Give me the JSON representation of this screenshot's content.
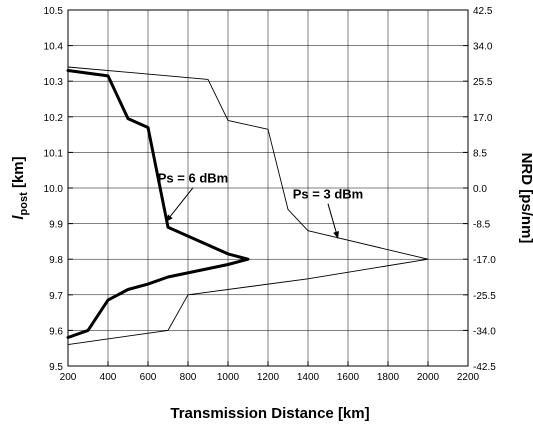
{
  "chart_data": {
    "type": "line",
    "xlabel": "Transmission Distance [km]",
    "ylabel": "l",
    "ylabel_sub": "post",
    "ylabel_unit": " [km]",
    "y2label": "NRD [ps/nm]",
    "xlim": [
      200,
      2200
    ],
    "ylim": [
      9.5,
      10.5
    ],
    "xticks": [
      "200",
      "400",
      "600",
      "800",
      "1000",
      "1200",
      "1400",
      "1600",
      "1800",
      "2000",
      "2200"
    ],
    "yticks": [
      "9.5",
      "9.6",
      "9.7",
      "9.8",
      "9.9",
      "10.0",
      "10.1",
      "10.2",
      "10.3",
      "10.4",
      "10.5"
    ],
    "y2ticks": [
      "-42.5",
      "-34.0",
      "-25.5",
      "-17.0",
      "-8.5",
      "0.0",
      "8.5",
      "17.0",
      "25.5",
      "34.0",
      "42.5"
    ],
    "grid": true,
    "series": [
      {
        "name": "Ps = 6 dBm",
        "style": "thick",
        "x": [
          200,
          400,
          500,
          600,
          700,
          1000,
          1100,
          1000,
          700,
          600,
          500,
          400,
          300,
          200
        ],
        "y": [
          10.33,
          10.315,
          10.195,
          10.17,
          9.89,
          9.815,
          9.8,
          9.785,
          9.75,
          9.73,
          9.715,
          9.685,
          9.6,
          9.58
        ]
      },
      {
        "name": "Ps = 3 dBm",
        "style": "thin",
        "x": [
          200,
          900,
          1000,
          1200,
          1300,
          1400,
          2000,
          1400,
          800,
          700,
          200
        ],
        "y": [
          10.34,
          10.305,
          10.19,
          10.165,
          9.94,
          9.88,
          9.8,
          9.745,
          9.7,
          9.6,
          9.56
        ]
      }
    ],
    "annotations": [
      {
        "text": "Ps = 6 dBm",
        "x": 825,
        "y": 10.015,
        "arrow_to_x": 690,
        "arrow_to_y": 9.905
      },
      {
        "text": "Ps = 3 dBm",
        "x": 1500,
        "y": 9.97,
        "arrow_to_x": 1550,
        "arrow_to_y": 9.858
      }
    ]
  }
}
